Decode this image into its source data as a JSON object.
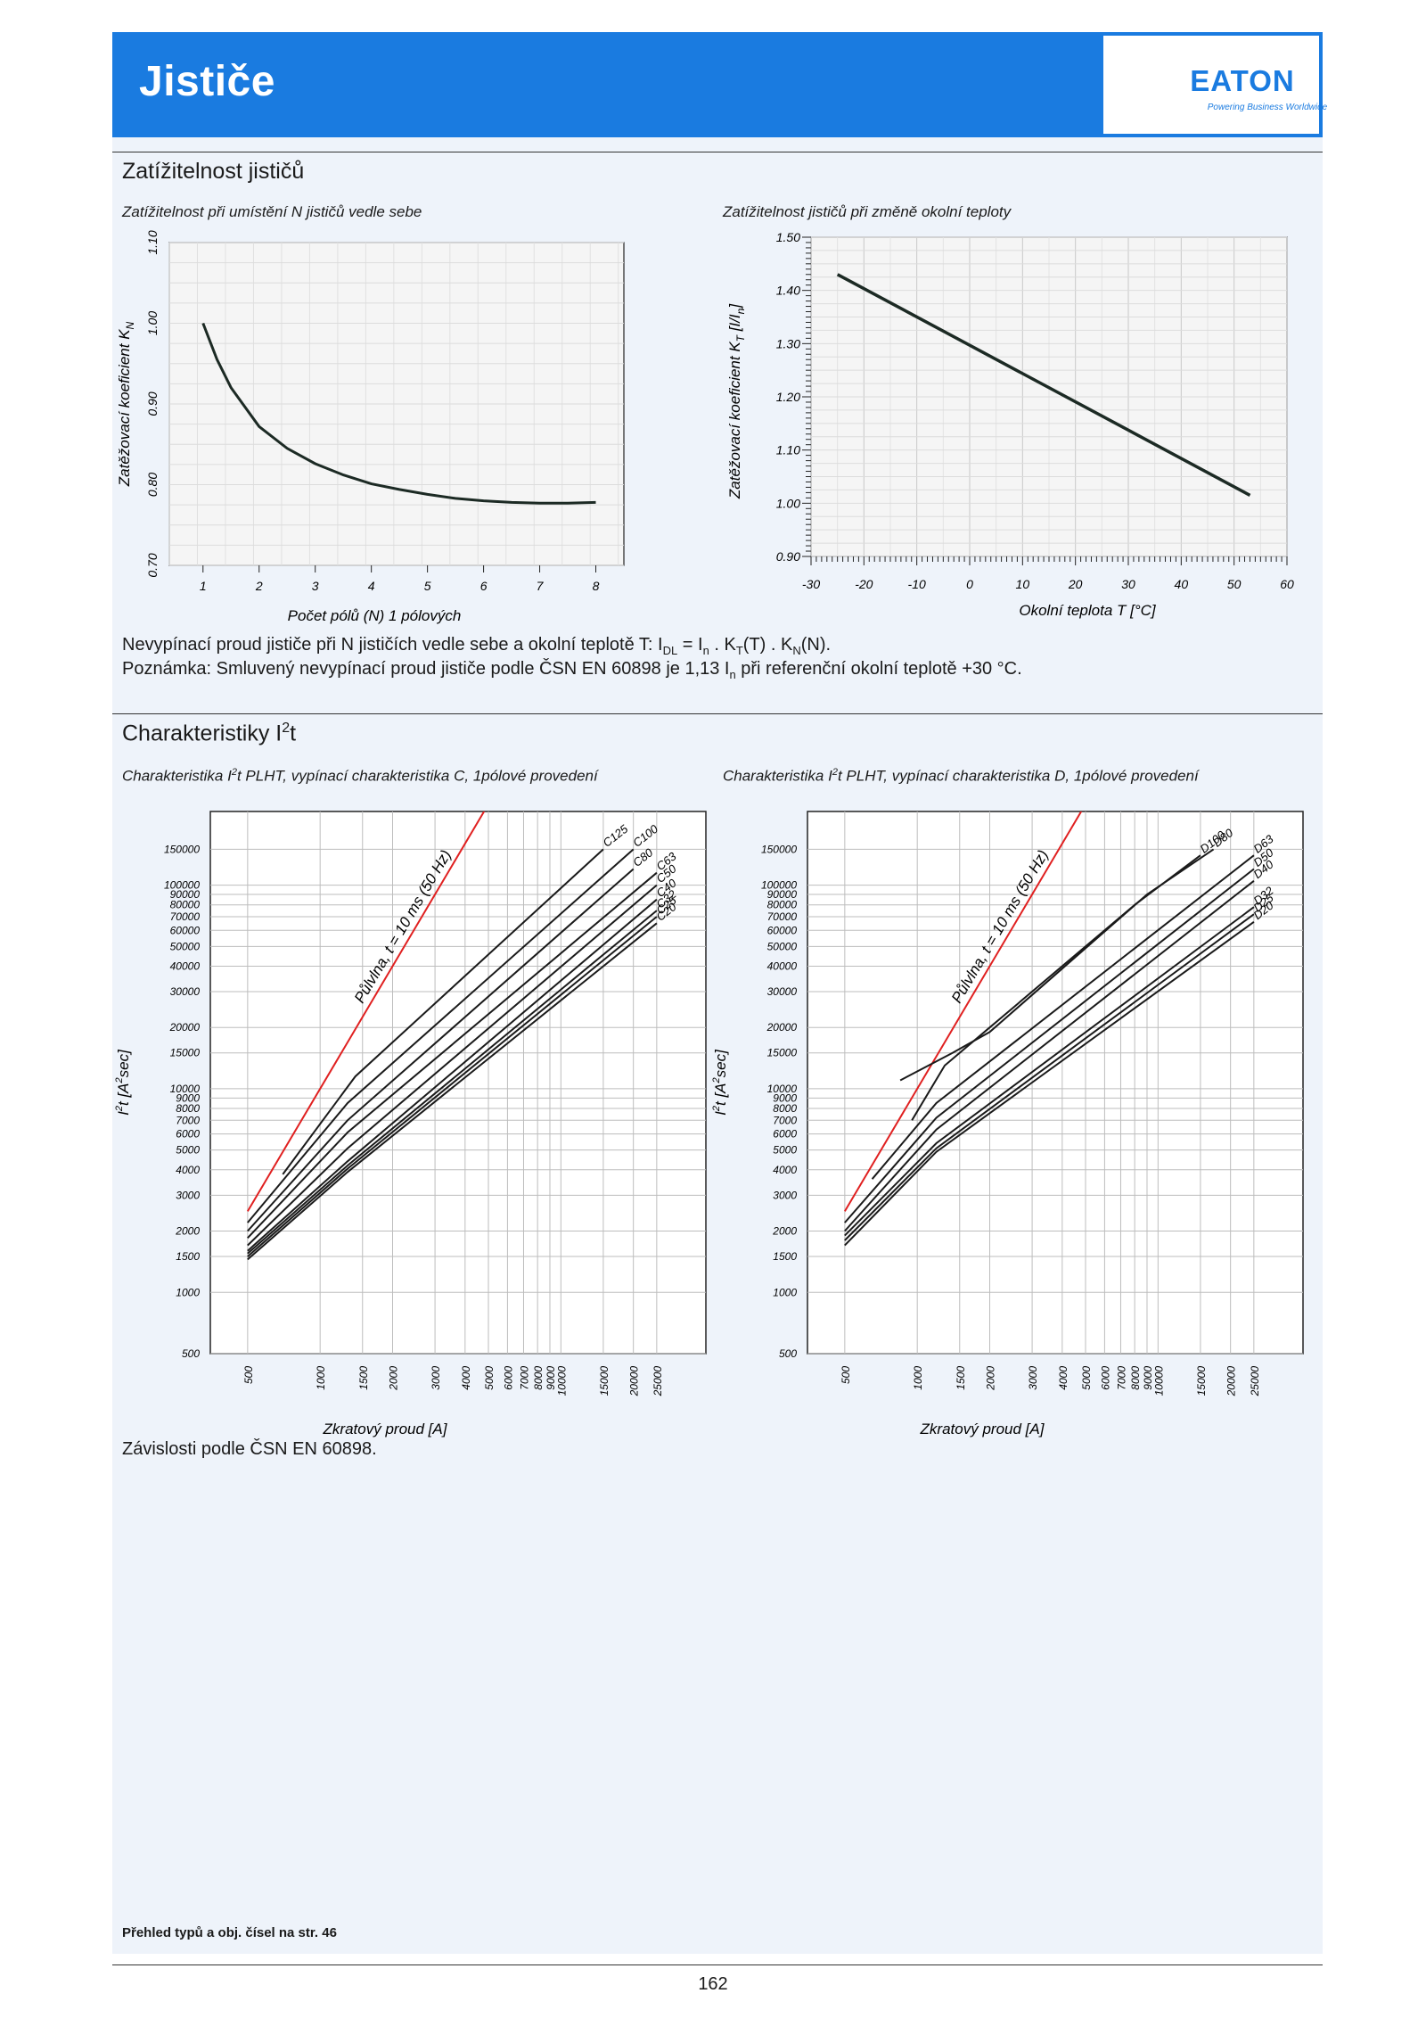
{
  "header": {
    "title": "Jističe",
    "logo_text": "EATON",
    "logo_tagline": "Powering Business Worldwide",
    "brand_color": "#1a7be0"
  },
  "section1": {
    "title": "Zatížitelnost jističů",
    "text_line1": {
      "a": "Nevypínací proud jističe při N jističích vedle sebe a okolní teplotě T: I",
      "sub1": "DL",
      "b": " = I",
      "sub2": "n",
      "c": " . K",
      "sub3": "T",
      "d": "(T) . K",
      "sub4": "N",
      "e": "(N)."
    },
    "text_line2": {
      "a": "Poznámka: Smluvený nevypínací proud jističe podle ČSN EN 60898 je 1,13 I",
      "sub": "n",
      "b": " při referenční okolní teplotě +30 °C."
    }
  },
  "section2": {
    "title_base": "Charakteristiky I",
    "title_sup": "2",
    "title_end": "t",
    "note": "Závislosti podle ČSN EN 60898."
  },
  "footer": {
    "note": "Přehled typů a obj. čísel na str. 46",
    "page_number": "162"
  },
  "chart_data": [
    {
      "type": "line",
      "title": "Zatížitelnost při umístění N jističů vedle sebe",
      "xlabel": "Počet pólů (N) 1 pólových",
      "ylabel": "Zatěžovací koeficient K",
      "ylabel_sub": "N",
      "x_ticks": [
        "1",
        "2",
        "3",
        "4",
        "5",
        "6",
        "7",
        "8"
      ],
      "y_ticks": [
        "0.70",
        "0.80",
        "0.90",
        "1.00",
        "1.10"
      ],
      "xlim": [
        0.4,
        8.5
      ],
      "ylim": [
        0.7,
        1.1
      ],
      "grid": true,
      "line_color": "#1c2a24",
      "series": [
        {
          "x": [
            1,
            1.25,
            1.5,
            2,
            2.5,
            3,
            3.5,
            4,
            4.5,
            5,
            5.5,
            6,
            6.5,
            7,
            7.5,
            8
          ],
          "y": [
            1.0,
            0.955,
            0.92,
            0.872,
            0.845,
            0.826,
            0.812,
            0.801,
            0.794,
            0.788,
            0.783,
            0.78,
            0.778,
            0.777,
            0.777,
            0.778
          ]
        }
      ]
    },
    {
      "type": "line",
      "title": "Zatížitelnost jističů při změně okolní teploty",
      "xlabel": "Okolní teplota T [°C]",
      "ylabel": "Zatěžovací koeficient K",
      "ylabel_sub": "T",
      "ylabel_unit": " [I/I",
      "ylabel_unit_sub": "n",
      "ylabel_unit_end": "]",
      "x_ticks": [
        "-30",
        "-20",
        "-10",
        "0",
        "10",
        "20",
        "30",
        "40",
        "50",
        "60"
      ],
      "y_ticks": [
        "0.90",
        "1.00",
        "1.10",
        "1.20",
        "1.30",
        "1.40",
        "1.50"
      ],
      "xlim": [
        -30,
        60
      ],
      "ylim": [
        0.9,
        1.5
      ],
      "grid": true,
      "line_color": "#1c2a24",
      "series": [
        {
          "x": [
            -25,
            53
          ],
          "y": [
            1.43,
            1.015
          ]
        }
      ]
    },
    {
      "type": "line",
      "title_base": "Charakteristika I",
      "title_sup": "2",
      "title_end": "t PLHT, vypínací charakteristika C, 1pólové provedení",
      "xlabel": "Zkratový proud [A]",
      "ylabel_base": "I",
      "ylabel_sup": "2",
      "ylabel_mid": "t [A",
      "ylabel_sup2": "2",
      "ylabel_end": "sec]",
      "x_scale": "log",
      "y_scale": "log",
      "xlim": [
        350,
        40000
      ],
      "ylim": [
        500,
        230000
      ],
      "x_ticks": [
        500,
        1000,
        1500,
        2000,
        3000,
        4000,
        5000,
        6000,
        7000,
        8000,
        9000,
        10000,
        15000,
        20000,
        25000
      ],
      "y_ticks": [
        500,
        1000,
        1500,
        2000,
        3000,
        4000,
        5000,
        6000,
        7000,
        8000,
        9000,
        10000,
        15000,
        20000,
        30000,
        40000,
        50000,
        60000,
        70000,
        80000,
        90000,
        100000,
        150000
      ],
      "half_wave_label": "Půlvlna, t = 10 ms (50 Hz)",
      "half_wave": {
        "x": [
          500,
          6000
        ],
        "y": [
          2500,
          360000
        ],
        "color": "#e02020"
      },
      "series": [
        {
          "name": "C125",
          "x": [
            700,
            1400,
            15000
          ],
          "y": [
            3800,
            11500,
            150000
          ]
        },
        {
          "name": "C100",
          "x": [
            500,
            1300,
            20000
          ],
          "y": [
            2200,
            8500,
            150000
          ]
        },
        {
          "name": "C80",
          "x": [
            500,
            1300,
            20000
          ],
          "y": [
            2000,
            7000,
            120000
          ]
        },
        {
          "name": "C63",
          "x": [
            500,
            1300,
            25000
          ],
          "y": [
            1850,
            6100,
            115000
          ]
        },
        {
          "name": "C50",
          "x": [
            500,
            1300,
            25000
          ],
          "y": [
            1700,
            5100,
            100000
          ]
        },
        {
          "name": "C40",
          "x": [
            500,
            1300,
            25000
          ],
          "y": [
            1600,
            4400,
            85000
          ]
        },
        {
          "name": "C32",
          "x": [
            500,
            1300,
            25000
          ],
          "y": [
            1550,
            4200,
            75000
          ]
        },
        {
          "name": "C25",
          "x": [
            500,
            1300,
            25000
          ],
          "y": [
            1500,
            4050,
            70000
          ]
        },
        {
          "name": "C20",
          "x": [
            500,
            1300,
            25000
          ],
          "y": [
            1450,
            3900,
            65000
          ]
        }
      ]
    },
    {
      "type": "line",
      "title_base": "Charakteristika I",
      "title_sup": "2",
      "title_end": "t PLHT, vypínací charakteristika D, 1pólové provedení",
      "xlabel": "Zkratový proud [A]",
      "ylabel_base": "I",
      "ylabel_sup": "2",
      "ylabel_mid": "t [A",
      "ylabel_sup2": "2",
      "ylabel_end": "sec]",
      "x_scale": "log",
      "y_scale": "log",
      "xlim": [
        350,
        40000
      ],
      "ylim": [
        500,
        230000
      ],
      "x_ticks": [
        500,
        1000,
        1500,
        2000,
        3000,
        4000,
        5000,
        6000,
        7000,
        8000,
        9000,
        10000,
        15000,
        20000,
        25000
      ],
      "y_ticks": [
        500,
        1000,
        1500,
        2000,
        3000,
        4000,
        5000,
        6000,
        7000,
        8000,
        9000,
        10000,
        15000,
        20000,
        30000,
        40000,
        50000,
        60000,
        70000,
        80000,
        90000,
        100000,
        150000
      ],
      "half_wave_label": "Půlvlna, t = 10 ms (50 Hz)",
      "half_wave": {
        "x": [
          500,
          6000
        ],
        "y": [
          2500,
          360000
        ],
        "color": "#e02020"
      },
      "series": [
        {
          "name": "D100",
          "x": [
            950,
            1300,
            2000,
            8000,
            15000
          ],
          "y": [
            7000,
            13000,
            20000,
            80000,
            140000
          ]
        },
        {
          "name": "D80",
          "x": [
            850,
            1400,
            2000,
            9000,
            17000
          ],
          "y": [
            11000,
            15000,
            19000,
            90000,
            150000
          ]
        },
        {
          "name": "D63",
          "x": [
            650,
            1200,
            25000
          ],
          "y": [
            3600,
            8500,
            140000
          ]
        },
        {
          "name": "D50",
          "x": [
            500,
            1200,
            25000
          ],
          "y": [
            2200,
            7200,
            120000
          ]
        },
        {
          "name": "D40",
          "x": [
            500,
            1200,
            25000
          ],
          "y": [
            2000,
            6300,
            105000
          ]
        },
        {
          "name": "D32",
          "x": [
            500,
            1200,
            25000
          ],
          "y": [
            1900,
            5400,
            78000
          ]
        },
        {
          "name": "D25",
          "x": [
            500,
            1200,
            25000
          ],
          "y": [
            1800,
            5100,
            72000
          ]
        },
        {
          "name": "D20",
          "x": [
            500,
            1200,
            25000
          ],
          "y": [
            1700,
            4900,
            66000
          ]
        }
      ]
    }
  ]
}
